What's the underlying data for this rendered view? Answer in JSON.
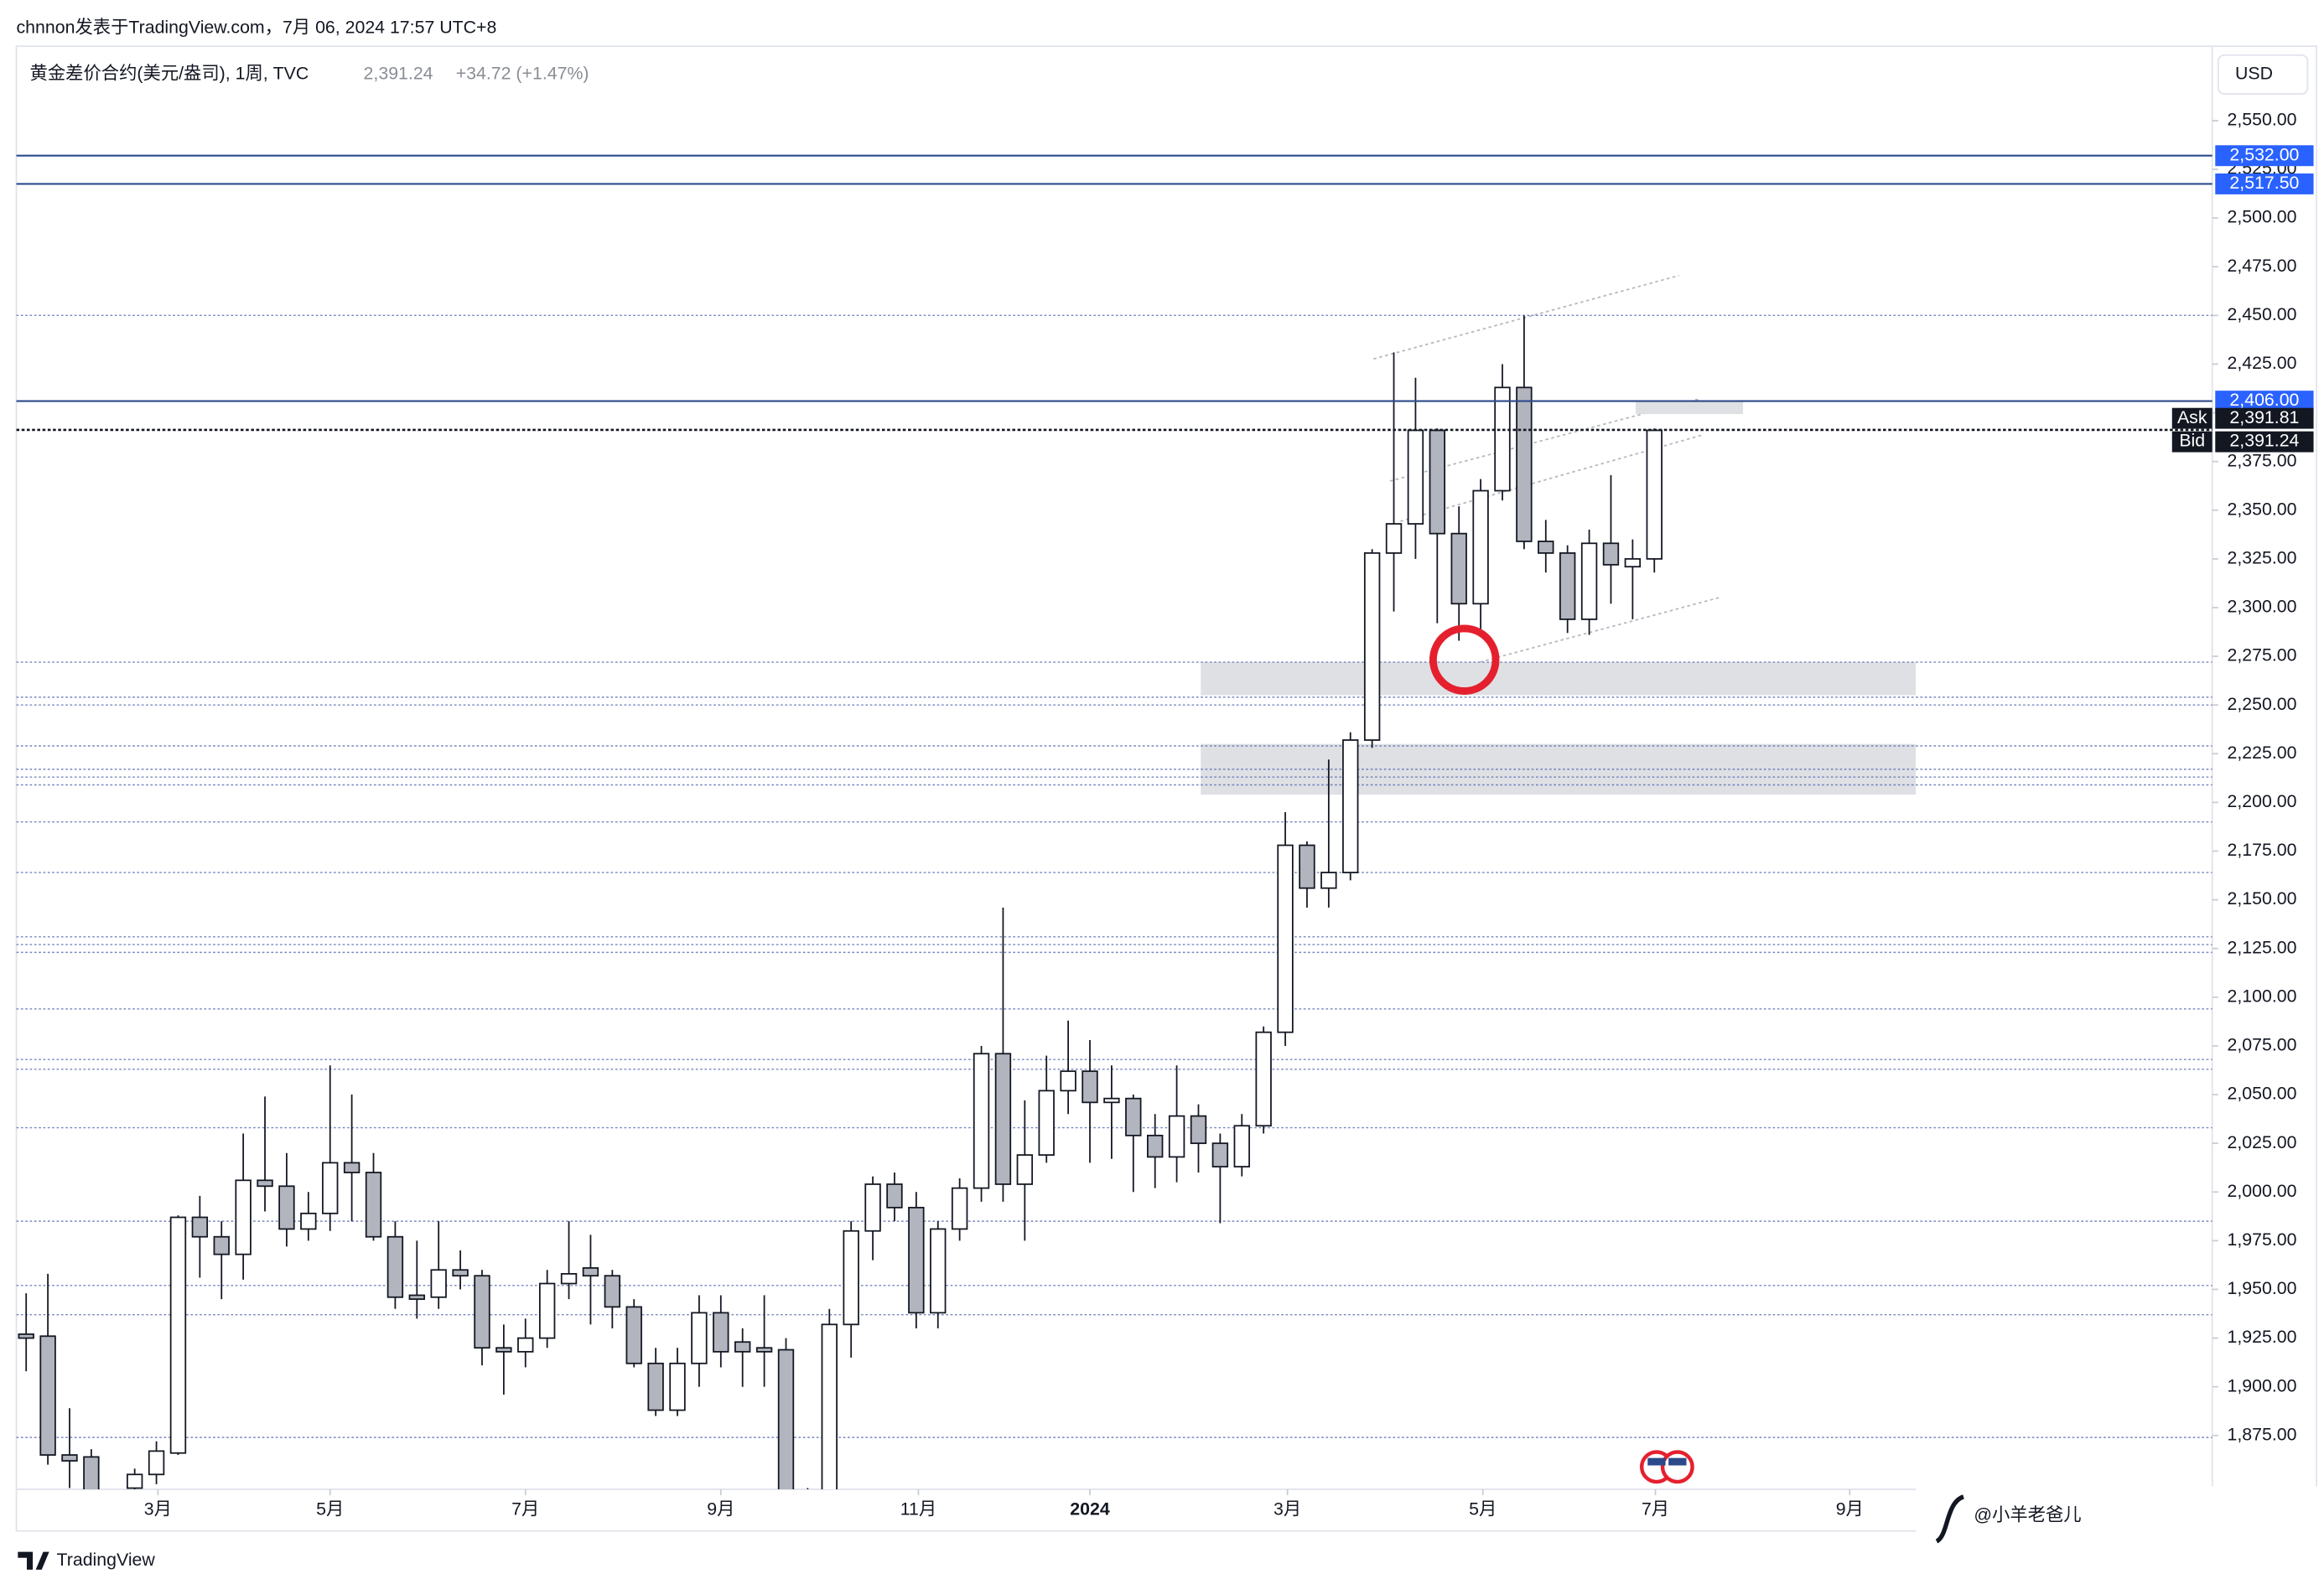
{
  "header": {
    "attribution": "chnnon发表于TradingView.com，7月 06, 2024 17:57 UTC+8",
    "symbol": "黄金差价合约(美元/盎司), 1周, TVC",
    "last": "2,391.24",
    "change": "+34.72 (+1.47%)",
    "currency": "USD",
    "logo": "TradingView",
    "watermark": "@小羊老爸儿"
  },
  "chart_data": {
    "type": "candlestick",
    "up_color": "#ffffff",
    "down_color": "#b2b5be",
    "outline_color": "#131722",
    "open": [
      1927,
      1926,
      1865,
      1864,
      1830,
      1848,
      1855,
      1866,
      1987,
      1977,
      1968,
      2006,
      2003,
      1981,
      1989,
      2015,
      2010,
      1977,
      1947,
      1946,
      1960,
      1957,
      1920,
      1918,
      1925,
      1953,
      1961,
      1957,
      1941,
      1912,
      1888,
      1912,
      1938,
      1923,
      1920,
      1919,
      1830,
      1835,
      1932,
      1980,
      2004,
      1992,
      1938,
      1981,
      2002,
      2071,
      2004,
      2019,
      2052,
      2062,
      2046,
      2048,
      2029,
      2018,
      2039,
      2025,
      2013,
      2034,
      2082,
      2178,
      2156,
      2164,
      2232,
      2328,
      2343,
      2391,
      2338,
      2302,
      2360,
      2413,
      2334,
      2328,
      2294,
      2333,
      2321,
      2325
    ],
    "high": [
      1948,
      1958,
      1889,
      1868,
      1845,
      1858,
      1872,
      1988,
      1998,
      1985,
      2030,
      2049,
      2020,
      2000,
      2065,
      2050,
      2020,
      1985,
      1975,
      1985,
      1970,
      1960,
      1932,
      1935,
      1960,
      1985,
      1978,
      1960,
      1945,
      1920,
      1920,
      1947,
      1947,
      1930,
      1947,
      1925,
      1848,
      1940,
      1985,
      2008,
      2010,
      2000,
      1985,
      2007,
      2075,
      2146,
      2047,
      2070,
      2088,
      2078,
      2065,
      2050,
      2040,
      2065,
      2045,
      2030,
      2040,
      2085,
      2195,
      2180,
      2222,
      2236,
      2330,
      2431,
      2418,
      2392,
      2352,
      2366,
      2425,
      2450,
      2345,
      2332,
      2340,
      2368,
      2335,
      2392
    ],
    "low": [
      1908,
      1860,
      1848,
      1820,
      1810,
      1840,
      1850,
      1865,
      1956,
      1945,
      1955,
      1990,
      1972,
      1975,
      1980,
      1985,
      1975,
      1940,
      1935,
      1940,
      1950,
      1911,
      1896,
      1910,
      1920,
      1945,
      1932,
      1930,
      1910,
      1885,
      1885,
      1900,
      1910,
      1900,
      1900,
      1810,
      1810,
      1820,
      1915,
      1965,
      1985,
      1930,
      1930,
      1975,
      1995,
      1995,
      1975,
      2015,
      2040,
      2015,
      2017,
      2000,
      2002,
      2005,
      2010,
      1984,
      2008,
      2030,
      2075,
      2146,
      2146,
      2160,
      2228,
      2298,
      2325,
      2292,
      2283,
      2285,
      2355,
      2330,
      2318,
      2287,
      2286,
      2302,
      2294,
      2318
    ],
    "close": [
      1925,
      1865,
      1862,
      1840,
      1835,
      1855,
      1867,
      1987,
      1977,
      1968,
      2006,
      2003,
      1981,
      1989,
      2015,
      2010,
      1977,
      1946,
      1945,
      1960,
      1957,
      1920,
      1918,
      1925,
      1953,
      1958,
      1957,
      1941,
      1912,
      1888,
      1912,
      1938,
      1918,
      1918,
      1918,
      1830,
      1832,
      1932,
      1980,
      2004,
      1992,
      1938,
      1981,
      2002,
      2071,
      2004,
      2019,
      2052,
      2062,
      2046,
      2048,
      2029,
      2018,
      2039,
      2025,
      2013,
      2034,
      2082,
      2178,
      2156,
      2164,
      2232,
      2328,
      2343,
      2391,
      2338,
      2302,
      2360,
      2413,
      2334,
      2328,
      2294,
      2333,
      2322,
      2325,
      2391
    ],
    "xlim": [
      -0.45,
      100.7
    ],
    "xticks": [
      {
        "value": 6.07,
        "label": "3月"
      },
      {
        "value": 14,
        "label": "5月"
      },
      {
        "value": 23,
        "label": "7月"
      },
      {
        "value": 32,
        "label": "9月"
      },
      {
        "value": 41.1,
        "label": "11月"
      },
      {
        "value": 49,
        "label": "2024"
      },
      {
        "value": 58.1,
        "label": "3月"
      },
      {
        "value": 67.1,
        "label": "5月"
      },
      {
        "value": 75.05,
        "label": "7月"
      },
      {
        "value": 84,
        "label": "9月"
      }
    ],
    "ylim": [
      1847.4,
      2588.2
    ],
    "yticks": [
      {
        "value": 1875,
        "label": "1,875.00"
      },
      {
        "value": 1900,
        "label": "1,900.00"
      },
      {
        "value": 1925,
        "label": "1,925.00"
      },
      {
        "value": 1950,
        "label": "1,950.00"
      },
      {
        "value": 1975,
        "label": "1,975.00"
      },
      {
        "value": 2000,
        "label": "2,000.00"
      },
      {
        "value": 2025,
        "label": "2,025.00"
      },
      {
        "value": 2050,
        "label": "2,050.00"
      },
      {
        "value": 2075,
        "label": "2,075.00"
      },
      {
        "value": 2100,
        "label": "2,100.00"
      },
      {
        "value": 2125,
        "label": "2,125.00"
      },
      {
        "value": 2150,
        "label": "2,150.00"
      },
      {
        "value": 2175,
        "label": "2,175.00"
      },
      {
        "value": 2200,
        "label": "2,200.00"
      },
      {
        "value": 2225,
        "label": "2,225.00"
      },
      {
        "value": 2250,
        "label": "2,250.00"
      },
      {
        "value": 2275,
        "label": "2,275.00"
      },
      {
        "value": 2300,
        "label": "2,300.00"
      },
      {
        "value": 2325,
        "label": "2,325.00"
      },
      {
        "value": 2350,
        "label": "2,350.00"
      },
      {
        "value": 2375,
        "label": "2,375.00"
      },
      {
        "value": 2400,
        "label": "2,400.00"
      },
      {
        "value": 2425,
        "label": "2,425.00"
      },
      {
        "value": 2450,
        "label": "2,450.00"
      },
      {
        "value": 2475,
        "label": "2,475.00"
      },
      {
        "value": 2500,
        "label": "2,500.00"
      },
      {
        "value": 2525,
        "label": "2,525.00"
      },
      {
        "value": 2550,
        "label": "2,550.00"
      }
    ],
    "price_lines": [
      {
        "value": 2532,
        "label": "2,532.00"
      },
      {
        "value": 2517.5,
        "label": "2,517.50"
      },
      {
        "value": 2406,
        "label": "2,406.00"
      }
    ],
    "price_line_color": "#2c4a8a",
    "badge_color": "#2962ff",
    "quotes": [
      {
        "name": "Ask",
        "value": 2391.81,
        "label": "2,391.81"
      },
      {
        "name": "Bid",
        "value": 2391.24,
        "label": "2,391.24"
      }
    ],
    "levels": [
      2450,
      2272,
      2254,
      2250,
      2229,
      2217,
      2213,
      2209,
      2190,
      2164,
      2131,
      2127,
      2123,
      2094,
      2068,
      2063,
      2033,
      1985,
      1952,
      1937,
      1874
    ],
    "level_color": "#5568b0",
    "zones": [
      {
        "top": 2272,
        "bottom": 2255
      },
      {
        "top": 2230,
        "bottom": 2204
      }
    ],
    "zone_color": "#dfe0e4"
  }
}
